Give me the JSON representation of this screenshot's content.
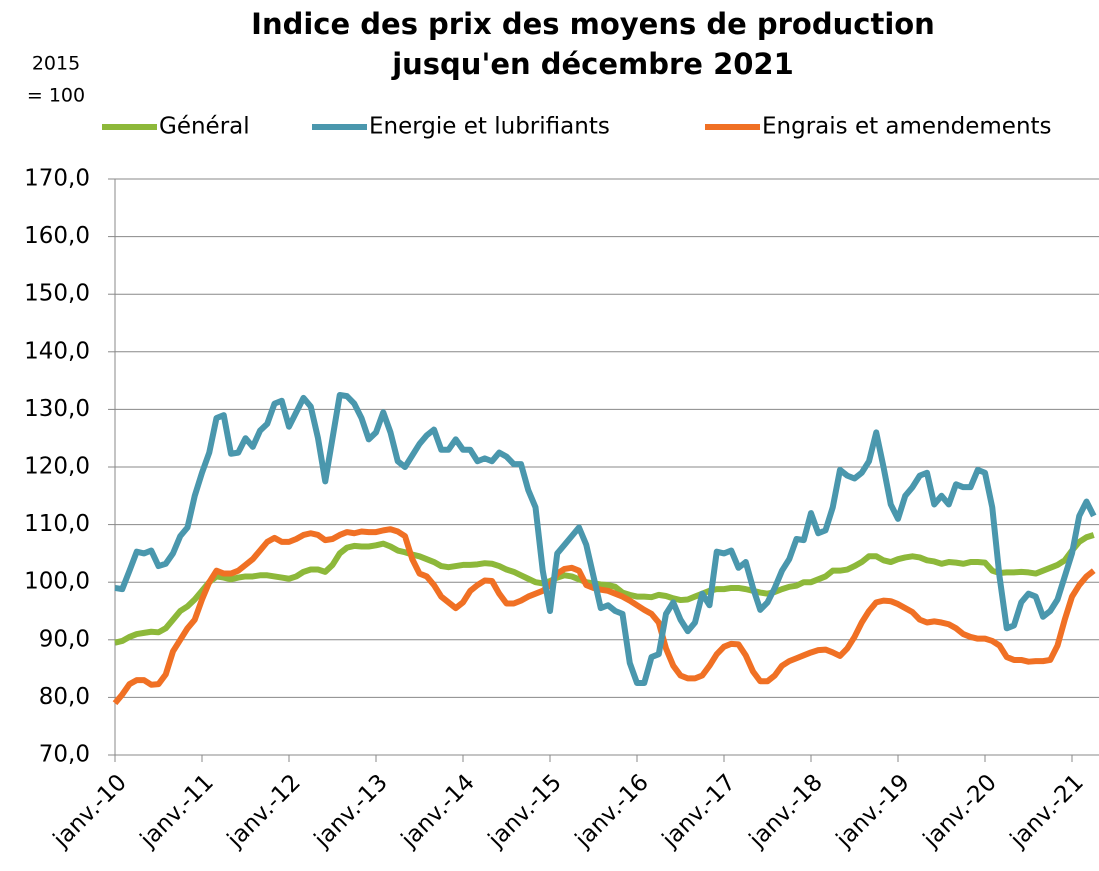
{
  "chart_data": {
    "type": "line",
    "title_lines": [
      "Indice des prix des moyens de production",
      "jusqu'en décembre 2021"
    ],
    "ylabel_lines": [
      "2015",
      "= 100"
    ],
    "categories": [
      "janv.-10",
      null,
      null,
      null,
      null,
      null,
      null,
      null,
      null,
      null,
      null,
      null,
      "janv.-11",
      null,
      null,
      null,
      null,
      null,
      null,
      null,
      null,
      null,
      null,
      null,
      "janv.-12",
      null,
      null,
      null,
      null,
      null,
      null,
      null,
      null,
      null,
      null,
      null,
      "janv.-13",
      null,
      null,
      null,
      null,
      null,
      null,
      null,
      null,
      null,
      null,
      null,
      "janv.-14",
      null,
      null,
      null,
      null,
      null,
      null,
      null,
      null,
      null,
      null,
      null,
      "janv.-15",
      null,
      null,
      null,
      null,
      null,
      null,
      null,
      null,
      null,
      null,
      null,
      "janv.-16",
      null,
      null,
      null,
      null,
      null,
      null,
      null,
      null,
      null,
      null,
      null,
      "janv.-17",
      null,
      null,
      null,
      null,
      null,
      null,
      null,
      null,
      null,
      null,
      null,
      "janv.-18",
      null,
      null,
      null,
      null,
      null,
      null,
      null,
      null,
      null,
      null,
      null,
      "janv.-19",
      null,
      null,
      null,
      null,
      null,
      null,
      null,
      null,
      null,
      null,
      null,
      "janv.-20",
      null,
      null,
      null,
      null,
      null,
      null,
      null,
      null,
      null,
      null,
      null,
      "janv.-21",
      null,
      null,
      null
    ],
    "series": [
      {
        "name": "Général",
        "color": "#8db83a",
        "values": [
          89.5,
          89.8,
          90.5,
          91,
          91.2,
          91.4,
          91.3,
          92,
          93.5,
          95,
          95.8,
          97,
          98.5,
          100,
          101,
          100.8,
          100.5,
          100.8,
          101,
          101,
          101.2,
          101.2,
          101,
          100.8,
          100.6,
          101,
          101.8,
          102.2,
          102.2,
          101.8,
          103,
          105,
          106,
          106.3,
          106.2,
          106.2,
          106.4,
          106.7,
          106.2,
          105.5,
          105.2,
          104.8,
          104.5,
          104,
          103.5,
          102.8,
          102.6,
          102.8,
          103,
          103,
          103.1,
          103.3,
          103.2,
          102.8,
          102.2,
          101.8,
          101.2,
          100.6,
          100,
          99.8,
          100.2,
          100.8,
          101.2,
          101,
          100.5,
          100,
          99.8,
          99.6,
          99.5,
          99.2,
          98.2,
          97.8,
          97.5,
          97.5,
          97.4,
          97.8,
          97.6,
          97.2,
          96.9,
          97,
          97.5,
          98,
          98.5,
          98.8,
          98.8,
          99,
          99,
          98.8,
          98.5,
          98.2,
          98,
          98.3,
          98.8,
          99.2,
          99.4,
          100,
          100,
          100.5,
          101,
          102,
          102,
          102.2,
          102.8,
          103.5,
          104.5,
          104.5,
          103.8,
          103.5,
          104,
          104.3,
          104.5,
          104.3,
          103.8,
          103.6,
          103.2,
          103.5,
          103.4,
          103.2,
          103.5,
          103.5,
          103.4,
          102,
          101.6,
          101.7,
          101.7,
          101.8,
          101.7,
          101.5,
          102,
          102.5,
          103,
          103.8,
          105.5,
          107,
          107.8,
          108.2
        ]
      },
      {
        "name": "Energie et lubrifiants",
        "color": "#4a97ad",
        "values": [
          99,
          98.8,
          102,
          105.3,
          105,
          105.5,
          102.8,
          103.2,
          105,
          108,
          109.5,
          115,
          119,
          122.5,
          128.5,
          129,
          122.3,
          122.5,
          125,
          123.5,
          126.3,
          127.5,
          131,
          131.5,
          127,
          129.5,
          132,
          130.5,
          125,
          117.5,
          125,
          132.5,
          132.3,
          131,
          128.5,
          124.8,
          126,
          129.5,
          126,
          121,
          120,
          122,
          124,
          125.5,
          126.5,
          123,
          123,
          124.8,
          123,
          123,
          121,
          121.5,
          121,
          122.5,
          121.8,
          120.5,
          120.5,
          116,
          113,
          102,
          95,
          105,
          106.5,
          108,
          109.5,
          106.5,
          101,
          95.5,
          96,
          95,
          94.5,
          86,
          82.5,
          82.5,
          87,
          87.5,
          94.5,
          96.5,
          93.5,
          91.5,
          93,
          98,
          96,
          105.3,
          105,
          105.5,
          102.5,
          103.5,
          99,
          95.2,
          96.5,
          99,
          102,
          104,
          107.5,
          107.3,
          112,
          108.5,
          109,
          113,
          119.5,
          118.5,
          118,
          119,
          121,
          126,
          120,
          113.5,
          111,
          115,
          116.5,
          118.5,
          119,
          113.5,
          115,
          113.5,
          117,
          116.5,
          116.5,
          119.5,
          119,
          113,
          101,
          92,
          92.5,
          96.5,
          98,
          97.5,
          94,
          95,
          97,
          101,
          105,
          111.5,
          114,
          111.5
        ]
      },
      {
        "name": "Engrais et amendements",
        "color": "#f07024",
        "values": [
          79,
          80.5,
          82.3,
          83,
          83,
          82.2,
          82.3,
          84,
          88,
          90,
          92,
          93.5,
          97,
          100,
          102,
          101.5,
          101.5,
          102,
          103,
          104,
          105.5,
          107,
          107.7,
          107,
          107,
          107.5,
          108.2,
          108.5,
          108.2,
          107.3,
          107.5,
          108.2,
          108.7,
          108.5,
          108.8,
          108.7,
          108.7,
          109,
          109.2,
          108.8,
          108,
          104,
          101.5,
          101,
          99.5,
          97.5,
          96.5,
          95.5,
          96.5,
          98.5,
          99.5,
          100.3,
          100.2,
          98,
          96.3,
          96.3,
          96.8,
          97.5,
          98,
          98.5,
          99.5,
          101.5,
          102.3,
          102.5,
          102,
          99.5,
          99,
          98.7,
          98.5,
          98,
          97.5,
          96.8,
          96,
          95.2,
          94.5,
          93,
          88.5,
          85.5,
          83.8,
          83.3,
          83.3,
          83.8,
          85.5,
          87.5,
          88.8,
          89.3,
          89.2,
          87.3,
          84.5,
          82.8,
          82.8,
          83.8,
          85.5,
          86.3,
          86.8,
          87.3,
          87.8,
          88.2,
          88.3,
          87.8,
          87.2,
          88.5,
          90.5,
          93,
          95,
          96.5,
          96.8,
          96.7,
          96.2,
          95.5,
          94.8,
          93.5,
          93,
          93.2,
          93,
          92.7,
          92,
          91,
          90.5,
          90.2,
          90.2,
          89.8,
          89,
          87,
          86.5,
          86.5,
          86.2,
          86.3,
          86.3,
          86.5,
          89,
          93.5,
          97.5,
          99.5,
          101,
          102
        ]
      }
    ],
    "ylim": [
      70,
      170
    ],
    "yticks": [
      {
        "value": 70,
        "label": "70,0"
      },
      {
        "value": 80,
        "label": "80,0"
      },
      {
        "value": 90,
        "label": "90,0"
      },
      {
        "value": 100,
        "label": "100,0"
      },
      {
        "value": 110,
        "label": "110,0"
      },
      {
        "value": 120,
        "label": "120,0"
      },
      {
        "value": 130,
        "label": "130,0"
      },
      {
        "value": 140,
        "label": "140,0"
      },
      {
        "value": 150,
        "label": "150,0"
      },
      {
        "value": 160,
        "label": "160,0"
      },
      {
        "value": 170,
        "label": "170,0"
      }
    ],
    "grid": true,
    "legend": "top"
  }
}
